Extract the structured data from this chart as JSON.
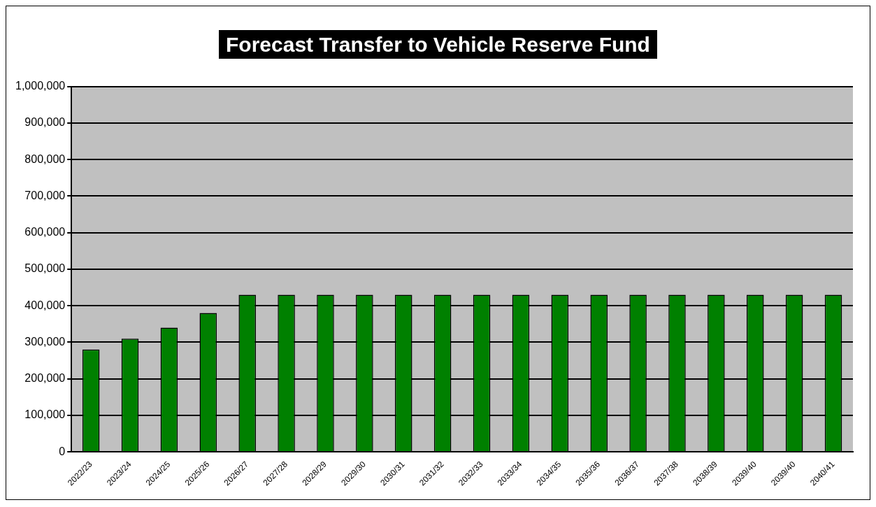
{
  "chart_data": {
    "type": "bar",
    "title": "Forecast Transfer to Vehicle Reserve Fund",
    "categories": [
      "2022/23",
      "2023/24",
      "2024/25",
      "2025/26",
      "2026/27",
      "2027/28",
      "2028/29",
      "2029/30",
      "2030/31",
      "2031/32",
      "2032/33",
      "2033/34",
      "2034/35",
      "2035/36",
      "2036/37",
      "2037/38",
      "2038/39",
      "2039/40",
      "2039/40",
      "2040/41"
    ],
    "values": [
      280000,
      310000,
      340000,
      380000,
      430000,
      430000,
      430000,
      430000,
      430000,
      430000,
      430000,
      430000,
      430000,
      430000,
      430000,
      430000,
      430000,
      430000,
      430000,
      430000
    ],
    "color": "#008000",
    "ylim": [
      0,
      1000000
    ],
    "yticks": [
      0,
      {
        "value": 100000,
        "label": "100,000"
      },
      {
        "value": 200000,
        "label": "200,000"
      },
      {
        "value": 300000,
        "label": "300,000"
      },
      {
        "value": 400000,
        "label": "400,000"
      },
      {
        "value": 500000,
        "label": "500,000"
      },
      {
        "value": 600000,
        "label": "600,000"
      },
      {
        "value": 700000,
        "label": "700,000"
      },
      {
        "value": 800000,
        "label": "800,000"
      },
      {
        "value": 900000,
        "label": "900,000"
      },
      {
        "value": 1000000,
        "label": "1,000,000"
      }
    ],
    "grid": "y",
    "legend": false
  }
}
